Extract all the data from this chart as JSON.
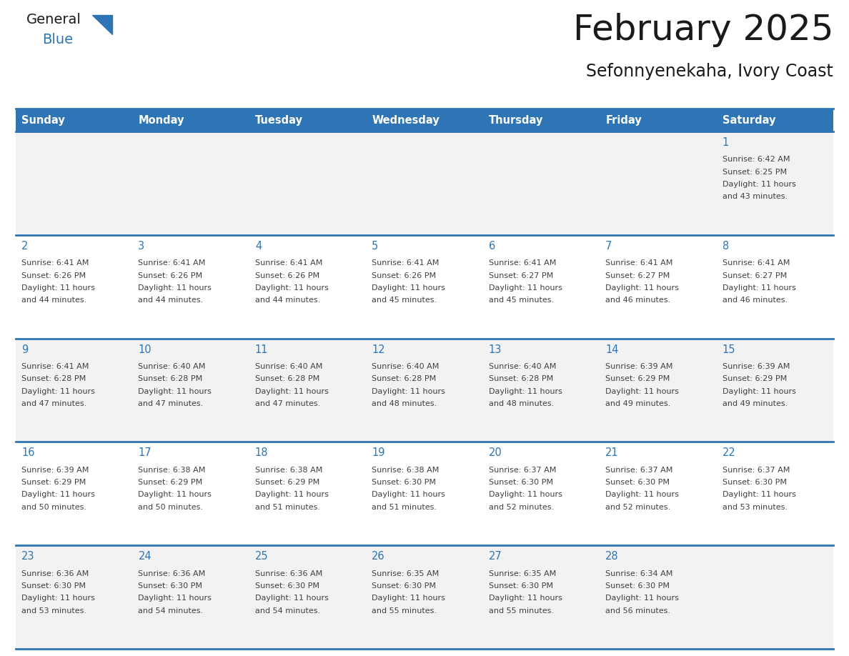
{
  "title": "February 2025",
  "subtitle": "Sefonnyenekaha, Ivory Coast",
  "header_color": "#2E75B6",
  "header_text_color": "#FFFFFF",
  "row_colors": [
    "#F2F2F2",
    "#FFFFFF",
    "#F2F2F2",
    "#FFFFFF",
    "#F2F2F2"
  ],
  "border_color": "#2E75B6",
  "text_color": "#404040",
  "day_num_color": "#2E75B6",
  "weekdays": [
    "Sunday",
    "Monday",
    "Tuesday",
    "Wednesday",
    "Thursday",
    "Friday",
    "Saturday"
  ],
  "days": [
    {
      "day": 1,
      "col": 6,
      "row": 0,
      "sunrise": "6:42 AM",
      "sunset": "6:25 PM",
      "daylight_hours": 11,
      "daylight_minutes": 43
    },
    {
      "day": 2,
      "col": 0,
      "row": 1,
      "sunrise": "6:41 AM",
      "sunset": "6:26 PM",
      "daylight_hours": 11,
      "daylight_minutes": 44
    },
    {
      "day": 3,
      "col": 1,
      "row": 1,
      "sunrise": "6:41 AM",
      "sunset": "6:26 PM",
      "daylight_hours": 11,
      "daylight_minutes": 44
    },
    {
      "day": 4,
      "col": 2,
      "row": 1,
      "sunrise": "6:41 AM",
      "sunset": "6:26 PM",
      "daylight_hours": 11,
      "daylight_minutes": 44
    },
    {
      "day": 5,
      "col": 3,
      "row": 1,
      "sunrise": "6:41 AM",
      "sunset": "6:26 PM",
      "daylight_hours": 11,
      "daylight_minutes": 45
    },
    {
      "day": 6,
      "col": 4,
      "row": 1,
      "sunrise": "6:41 AM",
      "sunset": "6:27 PM",
      "daylight_hours": 11,
      "daylight_minutes": 45
    },
    {
      "day": 7,
      "col": 5,
      "row": 1,
      "sunrise": "6:41 AM",
      "sunset": "6:27 PM",
      "daylight_hours": 11,
      "daylight_minutes": 46
    },
    {
      "day": 8,
      "col": 6,
      "row": 1,
      "sunrise": "6:41 AM",
      "sunset": "6:27 PM",
      "daylight_hours": 11,
      "daylight_minutes": 46
    },
    {
      "day": 9,
      "col": 0,
      "row": 2,
      "sunrise": "6:41 AM",
      "sunset": "6:28 PM",
      "daylight_hours": 11,
      "daylight_minutes": 47
    },
    {
      "day": 10,
      "col": 1,
      "row": 2,
      "sunrise": "6:40 AM",
      "sunset": "6:28 PM",
      "daylight_hours": 11,
      "daylight_minutes": 47
    },
    {
      "day": 11,
      "col": 2,
      "row": 2,
      "sunrise": "6:40 AM",
      "sunset": "6:28 PM",
      "daylight_hours": 11,
      "daylight_minutes": 47
    },
    {
      "day": 12,
      "col": 3,
      "row": 2,
      "sunrise": "6:40 AM",
      "sunset": "6:28 PM",
      "daylight_hours": 11,
      "daylight_minutes": 48
    },
    {
      "day": 13,
      "col": 4,
      "row": 2,
      "sunrise": "6:40 AM",
      "sunset": "6:28 PM",
      "daylight_hours": 11,
      "daylight_minutes": 48
    },
    {
      "day": 14,
      "col": 5,
      "row": 2,
      "sunrise": "6:39 AM",
      "sunset": "6:29 PM",
      "daylight_hours": 11,
      "daylight_minutes": 49
    },
    {
      "day": 15,
      "col": 6,
      "row": 2,
      "sunrise": "6:39 AM",
      "sunset": "6:29 PM",
      "daylight_hours": 11,
      "daylight_minutes": 49
    },
    {
      "day": 16,
      "col": 0,
      "row": 3,
      "sunrise": "6:39 AM",
      "sunset": "6:29 PM",
      "daylight_hours": 11,
      "daylight_minutes": 50
    },
    {
      "day": 17,
      "col": 1,
      "row": 3,
      "sunrise": "6:38 AM",
      "sunset": "6:29 PM",
      "daylight_hours": 11,
      "daylight_minutes": 50
    },
    {
      "day": 18,
      "col": 2,
      "row": 3,
      "sunrise": "6:38 AM",
      "sunset": "6:29 PM",
      "daylight_hours": 11,
      "daylight_minutes": 51
    },
    {
      "day": 19,
      "col": 3,
      "row": 3,
      "sunrise": "6:38 AM",
      "sunset": "6:30 PM",
      "daylight_hours": 11,
      "daylight_minutes": 51
    },
    {
      "day": 20,
      "col": 4,
      "row": 3,
      "sunrise": "6:37 AM",
      "sunset": "6:30 PM",
      "daylight_hours": 11,
      "daylight_minutes": 52
    },
    {
      "day": 21,
      "col": 5,
      "row": 3,
      "sunrise": "6:37 AM",
      "sunset": "6:30 PM",
      "daylight_hours": 11,
      "daylight_minutes": 52
    },
    {
      "day": 22,
      "col": 6,
      "row": 3,
      "sunrise": "6:37 AM",
      "sunset": "6:30 PM",
      "daylight_hours": 11,
      "daylight_minutes": 53
    },
    {
      "day": 23,
      "col": 0,
      "row": 4,
      "sunrise": "6:36 AM",
      "sunset": "6:30 PM",
      "daylight_hours": 11,
      "daylight_minutes": 53
    },
    {
      "day": 24,
      "col": 1,
      "row": 4,
      "sunrise": "6:36 AM",
      "sunset": "6:30 PM",
      "daylight_hours": 11,
      "daylight_minutes": 54
    },
    {
      "day": 25,
      "col": 2,
      "row": 4,
      "sunrise": "6:36 AM",
      "sunset": "6:30 PM",
      "daylight_hours": 11,
      "daylight_minutes": 54
    },
    {
      "day": 26,
      "col": 3,
      "row": 4,
      "sunrise": "6:35 AM",
      "sunset": "6:30 PM",
      "daylight_hours": 11,
      "daylight_minutes": 55
    },
    {
      "day": 27,
      "col": 4,
      "row": 4,
      "sunrise": "6:35 AM",
      "sunset": "6:30 PM",
      "daylight_hours": 11,
      "daylight_minutes": 55
    },
    {
      "day": 28,
      "col": 5,
      "row": 4,
      "sunrise": "6:34 AM",
      "sunset": "6:30 PM",
      "daylight_hours": 11,
      "daylight_minutes": 56
    }
  ],
  "num_rows": 5
}
